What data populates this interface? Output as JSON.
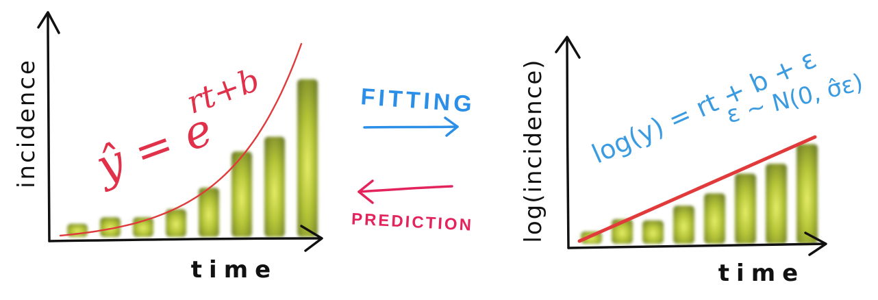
{
  "left_panel": {
    "ylabel": "incidence",
    "xlabel": "time",
    "equation": "ŷ = e^(rt+b)",
    "equation_base": "ŷ = e",
    "equation_exponent": "rt+b",
    "bar_color": "#b8c93a",
    "curve_color": "#e03a3a"
  },
  "middle": {
    "fitting_label": "FITTING",
    "fitting_color": "#2b8fe8",
    "prediction_label": "PREDICTION",
    "prediction_color": "#e3245c"
  },
  "right_panel": {
    "ylabel": "log(incidence)",
    "xlabel": "time",
    "equation_line1": "log(y) = rt + b + ε",
    "equation_line2": "ε ~ N(0, σ̂ε)",
    "equation_color": "#3a9be0",
    "line_color": "#e03a3a",
    "bar_color": "#b8c93a"
  },
  "chart_data": [
    {
      "type": "bar",
      "ylabel": "incidence",
      "xlabel": "time",
      "values": [
        0.08,
        0.12,
        0.12,
        0.17,
        0.3,
        0.52,
        0.61,
        0.96
      ],
      "fit": "exponential"
    },
    {
      "type": "bar",
      "ylabel": "log(incidence)",
      "xlabel": "time",
      "values": [
        0.1,
        0.2,
        0.19,
        0.31,
        0.41,
        0.57,
        0.65,
        0.81
      ],
      "fit": "linear"
    }
  ]
}
